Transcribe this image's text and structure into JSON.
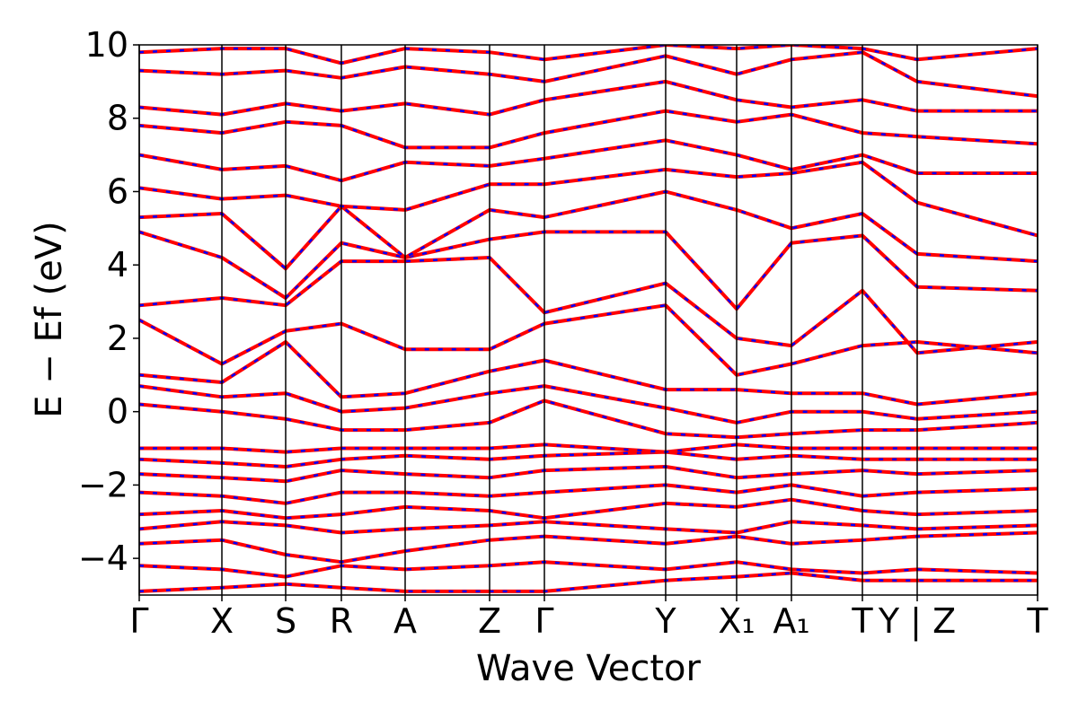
{
  "chart_data": {
    "type": "band_structure",
    "xlabel": "Wave Vector",
    "ylabel": "E − Ef (eV)",
    "xlim": [
      0,
      10
    ],
    "ylim": [
      -5,
      10
    ],
    "yticks": [
      {
        "value": -4,
        "label": "−4"
      },
      {
        "value": -2,
        "label": "−2"
      },
      0,
      2,
      4,
      6,
      8,
      10
    ],
    "xticks": [
      {
        "value": 0,
        "label": "Γ"
      },
      {
        "value": 0.92,
        "label": "X"
      },
      {
        "value": 1.63,
        "label": "S"
      },
      {
        "value": 2.25,
        "label": "R"
      },
      {
        "value": 2.96,
        "label": "A"
      },
      {
        "value": 3.9,
        "label": "Z"
      },
      {
        "value": 4.51,
        "label": "Γ"
      },
      {
        "value": 5.86,
        "label": "Y"
      },
      {
        "value": 6.65,
        "label": "X₁"
      },
      {
        "value": 7.26,
        "label": "A₁"
      },
      {
        "value": 8.05,
        "label": "T"
      },
      {
        "value": 8.66,
        "label": "Y | Z"
      },
      {
        "value": 10,
        "label": "T"
      }
    ],
    "x": [
      0,
      0.92,
      1.63,
      2.25,
      2.96,
      3.9,
      4.51,
      5.86,
      6.65,
      7.26,
      8.05,
      8.66,
      10
    ],
    "line_color": "#ff0000",
    "dash_color": "#0000ff",
    "bands": [
      [
        -4.9,
        -4.8,
        -4.7,
        -4.8,
        -4.9,
        -4.9,
        -4.9,
        -4.6,
        -4.5,
        -4.4,
        -4.6,
        -4.6,
        -4.6
      ],
      [
        -4.2,
        -4.3,
        -4.5,
        -4.2,
        -4.3,
        -4.2,
        -4.1,
        -4.3,
        -4.1,
        -4.3,
        -4.4,
        -4.3,
        -4.4
      ],
      [
        -3.6,
        -3.5,
        -3.9,
        -4.1,
        -3.8,
        -3.5,
        -3.4,
        -3.6,
        -3.4,
        -3.6,
        -3.5,
        -3.4,
        -3.3
      ],
      [
        -3.2,
        -3.0,
        -3.1,
        -3.3,
        -3.2,
        -3.1,
        -3.0,
        -3.2,
        -3.3,
        -3.0,
        -3.1,
        -3.2,
        -3.1
      ],
      [
        -2.8,
        -2.7,
        -2.9,
        -2.8,
        -2.6,
        -2.7,
        -2.9,
        -2.5,
        -2.6,
        -2.4,
        -2.7,
        -2.8,
        -2.7
      ],
      [
        -2.2,
        -2.3,
        -2.5,
        -2.2,
        -2.2,
        -2.3,
        -2.2,
        -2.0,
        -2.2,
        -2.0,
        -2.3,
        -2.2,
        -2.1
      ],
      [
        -1.7,
        -1.8,
        -1.9,
        -1.6,
        -1.7,
        -1.8,
        -1.6,
        -1.5,
        -1.8,
        -1.7,
        -1.6,
        -1.7,
        -1.6
      ],
      [
        -1.3,
        -1.4,
        -1.5,
        -1.3,
        -1.2,
        -1.3,
        -1.2,
        -1.1,
        -1.3,
        -1.2,
        -1.3,
        -1.3,
        -1.3
      ],
      [
        -1.0,
        -1.0,
        -1.1,
        -1.0,
        -1.0,
        -1.0,
        -0.9,
        -1.1,
        -0.9,
        -1.0,
        -1.0,
        -1.0,
        -1.0
      ],
      [
        0.2,
        0.0,
        -0.2,
        -0.5,
        -0.5,
        -0.3,
        0.3,
        -0.6,
        -0.7,
        -0.6,
        -0.5,
        -0.5,
        -0.3
      ],
      [
        0.7,
        0.4,
        0.5,
        0.0,
        0.1,
        0.5,
        0.7,
        0.1,
        -0.3,
        0.0,
        0.0,
        -0.2,
        0.0
      ],
      [
        1.0,
        0.8,
        1.9,
        0.4,
        0.5,
        1.1,
        1.4,
        0.6,
        0.6,
        0.5,
        0.5,
        0.2,
        0.5
      ],
      [
        2.5,
        1.3,
        2.2,
        2.4,
        1.7,
        1.7,
        2.4,
        2.9,
        1.0,
        1.3,
        1.8,
        1.9,
        1.6
      ],
      [
        2.9,
        3.1,
        2.9,
        4.1,
        4.1,
        4.2,
        2.7,
        3.5,
        2.0,
        1.8,
        3.3,
        1.6,
        1.9
      ],
      [
        4.9,
        4.2,
        3.1,
        4.6,
        4.2,
        4.7,
        4.9,
        4.9,
        2.8,
        4.6,
        4.8,
        3.4,
        3.3
      ],
      [
        5.3,
        5.4,
        3.9,
        5.6,
        4.2,
        5.5,
        5.3,
        6.0,
        5.5,
        5.0,
        5.4,
        4.3,
        4.1
      ],
      [
        6.1,
        5.8,
        5.9,
        5.6,
        5.5,
        6.2,
        6.2,
        6.6,
        6.4,
        6.5,
        6.8,
        5.7,
        4.8
      ],
      [
        7.0,
        6.6,
        6.7,
        6.3,
        6.8,
        6.7,
        6.9,
        7.4,
        7.0,
        6.6,
        7.0,
        6.5,
        6.5
      ],
      [
        7.8,
        7.6,
        7.9,
        7.8,
        7.2,
        7.2,
        7.6,
        8.2,
        7.9,
        8.1,
        7.6,
        7.5,
        7.3
      ],
      [
        8.3,
        8.1,
        8.4,
        8.2,
        8.4,
        8.1,
        8.5,
        9.0,
        8.5,
        8.3,
        8.5,
        8.2,
        8.2
      ],
      [
        9.3,
        9.2,
        9.3,
        9.1,
        9.4,
        9.2,
        9.0,
        9.7,
        9.2,
        9.6,
        9.8,
        9.0,
        8.6
      ],
      [
        9.8,
        9.9,
        9.9,
        9.5,
        9.9,
        9.8,
        9.6,
        10.0,
        9.9,
        10.0,
        9.9,
        9.6,
        9.9
      ]
    ]
  }
}
